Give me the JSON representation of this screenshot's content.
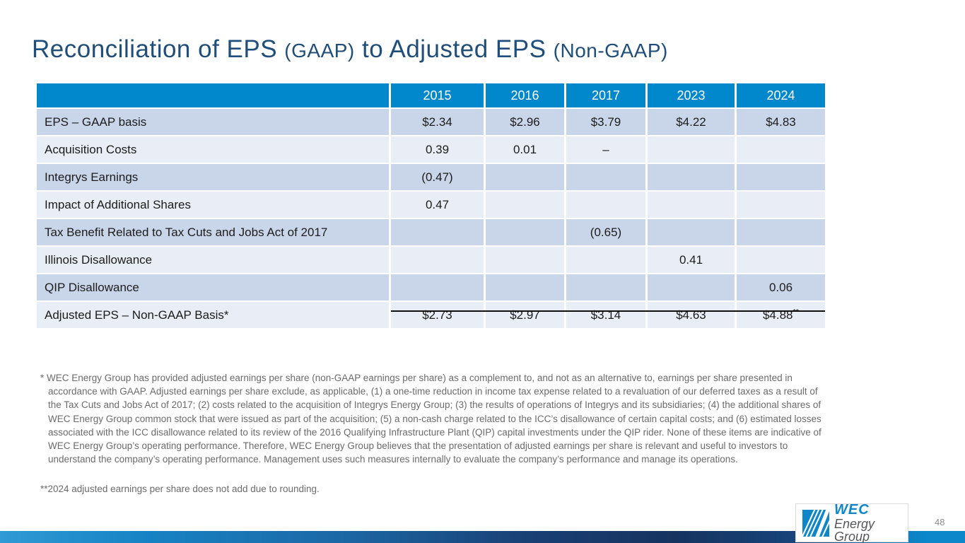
{
  "title": {
    "part1": "Reconciliation of EPS ",
    "part2": "(GAAP)",
    "part3": " to Adjusted EPS ",
    "part4": "(Non-GAAP)"
  },
  "table": {
    "columns": [
      "2015",
      "2016",
      "2017",
      "2023",
      "2024"
    ],
    "rows": [
      {
        "label": "EPS – GAAP basis",
        "values": [
          "$2.34",
          "$2.96",
          "$3.79",
          "$4.22",
          "$4.83"
        ]
      },
      {
        "label": "Acquisition Costs",
        "values": [
          "0.39",
          "0.01",
          "–",
          "",
          ""
        ]
      },
      {
        "label": "Integrys Earnings",
        "values": [
          "(0.47)",
          "",
          "",
          "",
          ""
        ]
      },
      {
        "label": "Impact of Additional Shares",
        "values": [
          "0.47",
          "",
          "",
          "",
          ""
        ]
      },
      {
        "label": "Tax Benefit Related to Tax Cuts and Jobs Act of 2017",
        "values": [
          "",
          "",
          "(0.65)",
          "",
          ""
        ]
      },
      {
        "label": "Illinois Disallowance",
        "values": [
          "",
          "",
          "",
          "0.41",
          ""
        ]
      },
      {
        "label": "QIP Disallowance",
        "values": [
          "",
          "",
          "",
          "",
          "0.06"
        ]
      },
      {
        "label": "Adjusted EPS – Non-GAAP Basis*",
        "values": [
          "$2.73",
          "$2.97",
          "$3.14",
          "$4.63",
          "$4.88"
        ],
        "superscript": "**"
      }
    ]
  },
  "footnotes": {
    "first": "* WEC Energy Group has provided adjusted earnings per share (non-GAAP earnings per share) as a complement to, and not as an alternative to, earnings per share presented in accordance with GAAP. Adjusted earnings per share exclude, as applicable, (1) a one-time reduction in income tax expense related to a revaluation of our deferred taxes as a result of the Tax Cuts and Jobs Act of 2017; (2) costs related to the acquisition of Integrys Energy Group; (3) the results of operations of Integrys and its subsidiaries; (4) the additional shares of WEC Energy Group common stock that were issued as part of the acquisition; (5) a non-cash charge related to the ICC’s disallowance of certain capital costs; and (6) estimated losses associated with the ICC disallowance related to its review of the 2016 Qualifying Infrastructure Plant (QIP) capital investments under the QIP rider. None of these items are indicative of WEC Energy Group’s operating performance. Therefore, WEC Energy Group believes that the presentation of adjusted earnings per share is relevant and useful to investors to understand the company’s operating performance. Management uses such measures internally to evaluate the company’s performance and manage its operations.",
    "second": "**2024 adjusted earnings per share does not add due to rounding."
  },
  "logo": {
    "wec": "WEC",
    "energy_group": "Energy Group"
  },
  "page_number": "48",
  "colors": {
    "title_blue": "#1f4e7a",
    "header_blue": "#0087cc",
    "row_dark": "#c9d6ea",
    "row_light": "#e9edf5",
    "footnote_gray": "#6b6b6b",
    "logo_blue": "#0e86c8",
    "logo_gray": "#55565a",
    "bar_dark_navy": "#16335f",
    "bar_bright_blue": "#0d87ca",
    "total_rule_black": "#111111"
  }
}
